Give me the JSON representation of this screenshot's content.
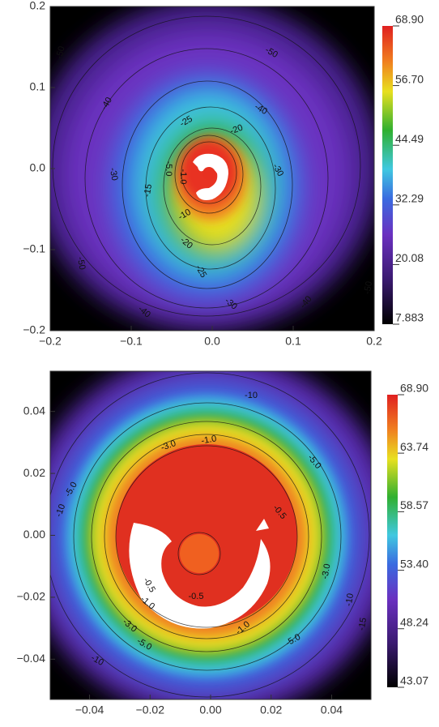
{
  "chart_data": [
    {
      "type": "contour",
      "xlim": [
        -0.2,
        0.2
      ],
      "ylim": [
        -0.2,
        0.2
      ],
      "xticks": [
        {
          "value": -0.2,
          "label": "−0.2"
        },
        {
          "value": -0.1,
          "label": "−0.1"
        },
        {
          "value": 0,
          "label": "0.0"
        },
        0.1,
        0.2
      ],
      "yticks": [
        {
          "value": -0.2,
          "label": "−0.2"
        },
        {
          "value": -0.1,
          "label": "−0.1"
        },
        {
          "value": 0,
          "label": "0.0"
        },
        0.1,
        0.2
      ],
      "colorbar": {
        "lim": [
          7.883,
          68.9
        ],
        "ticks": [
          {
            "value": 68.9,
            "label": "68.90"
          },
          {
            "value": 56.7,
            "label": "56.70"
          },
          44.49,
          32.29,
          20.08,
          7.883
        ]
      },
      "contour_labels": [
        "-50",
        "-50",
        "-40",
        "-40",
        "-25",
        "-20",
        "-30",
        "-30",
        "-5.0",
        "-1.0",
        "-15",
        "-10",
        "-20",
        "-25",
        "-50",
        "-30",
        "-40",
        "-40",
        "-50"
      ]
    },
    {
      "type": "contour",
      "xlim": [
        -0.053,
        0.053
      ],
      "ylim": [
        -0.053,
        0.053
      ],
      "xticks": [
        {
          "value": -0.04,
          "label": "−0.04"
        },
        {
          "value": -0.02,
          "label": "−0.02"
        },
        {
          "value": 0,
          "label": "0.00"
        },
        0.02,
        0.04
      ],
      "yticks": [
        {
          "value": -0.04,
          "label": "−0.04"
        },
        {
          "value": -0.02,
          "label": "−0.02"
        },
        {
          "value": 0,
          "label": "0.00"
        },
        0.02,
        0.04
      ],
      "colorbar": {
        "lim": [
          43.07,
          68.9
        ],
        "ticks": [
          {
            "value": 68.9,
            "label": "68.90"
          },
          63.74,
          58.57,
          {
            "value": 53.4,
            "label": "53.40"
          },
          48.24,
          43.07
        ]
      },
      "contour_labels": [
        "-10",
        "-3.0",
        "-1.0",
        "-5.0",
        "-10",
        "-5.0",
        "-0.5",
        "-0.5",
        "-3.0",
        "-10",
        "-15",
        "-1.0",
        "-1.0",
        "-0.5",
        "-3.0",
        "-5.0",
        "-5.0",
        "-10"
      ]
    }
  ]
}
